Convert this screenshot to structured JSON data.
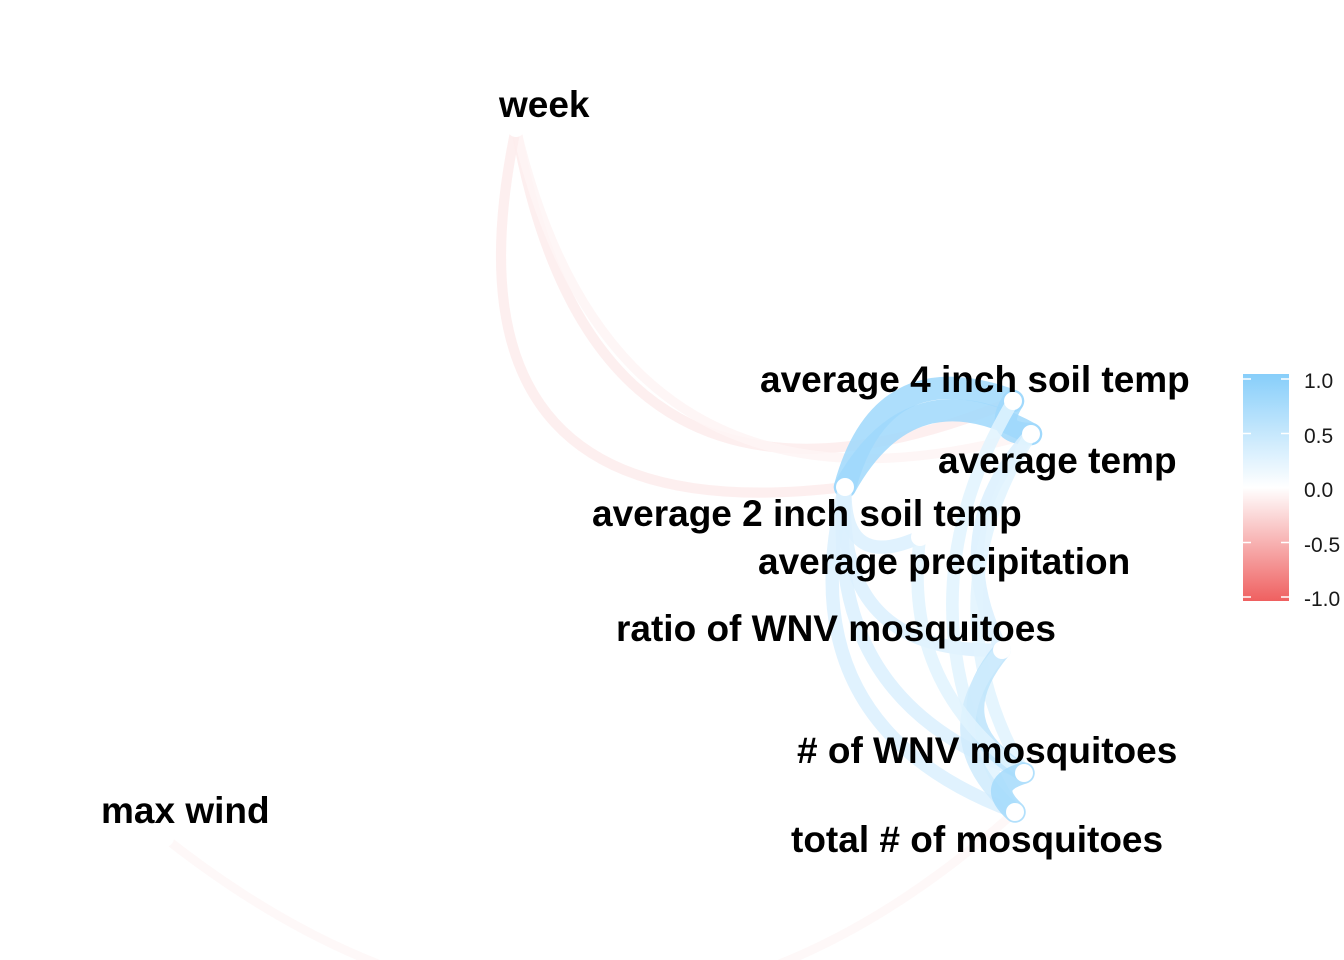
{
  "chart_data": {
    "type": "correlation-network",
    "nodes": [
      {
        "id": "week",
        "label": "week"
      },
      {
        "id": "soil4",
        "label": "average 4 inch soil temp"
      },
      {
        "id": "temp",
        "label": "average temp"
      },
      {
        "id": "soil2",
        "label": "average 2 inch soil temp"
      },
      {
        "id": "precip",
        "label": "average precipitation"
      },
      {
        "id": "ratio",
        "label": "ratio of WNV mosquitoes"
      },
      {
        "id": "wnv",
        "label": "# of WNV mosquitoes"
      },
      {
        "id": "total",
        "label": "total # of mosquitoes"
      },
      {
        "id": "wind",
        "label": "max wind"
      }
    ],
    "edges": [
      {
        "from": "week",
        "to": "soil4",
        "r": -0.12
      },
      {
        "from": "week",
        "to": "temp",
        "r": -0.07
      },
      {
        "from": "week",
        "to": "soil2",
        "r": -0.12
      },
      {
        "from": "wind",
        "to": "total",
        "r": -0.05
      },
      {
        "from": "soil4",
        "to": "temp",
        "r": 0.8
      },
      {
        "from": "soil4",
        "to": "soil2",
        "r": 0.8
      },
      {
        "from": "temp",
        "to": "soil2",
        "r": 0.8
      },
      {
        "from": "soil2",
        "to": "precip",
        "r": 0.3
      },
      {
        "from": "soil2",
        "to": "ratio",
        "r": 0.3
      },
      {
        "from": "soil2",
        "to": "wnv",
        "r": 0.3
      },
      {
        "from": "soil2",
        "to": "total",
        "r": 0.3
      },
      {
        "from": "temp",
        "to": "ratio",
        "r": 0.3
      },
      {
        "from": "temp",
        "to": "wnv",
        "r": 0.25
      },
      {
        "from": "soil4",
        "to": "total",
        "r": 0.25
      },
      {
        "from": "ratio",
        "to": "wnv",
        "r": 0.55
      },
      {
        "from": "ratio",
        "to": "total",
        "r": 0.4
      },
      {
        "from": "precip",
        "to": "wnv",
        "r": 0.25
      },
      {
        "from": "wnv",
        "to": "total",
        "r": 0.75
      }
    ],
    "legend": {
      "ticks": [
        "1.0",
        "0.5",
        "0.0",
        "-0.5",
        "-1.0"
      ],
      "range": [
        -1,
        1
      ],
      "position": "right"
    },
    "colors": {
      "positive": "#87CEFA",
      "zero": "#FFFFFF",
      "negative": "#EF6060"
    }
  }
}
